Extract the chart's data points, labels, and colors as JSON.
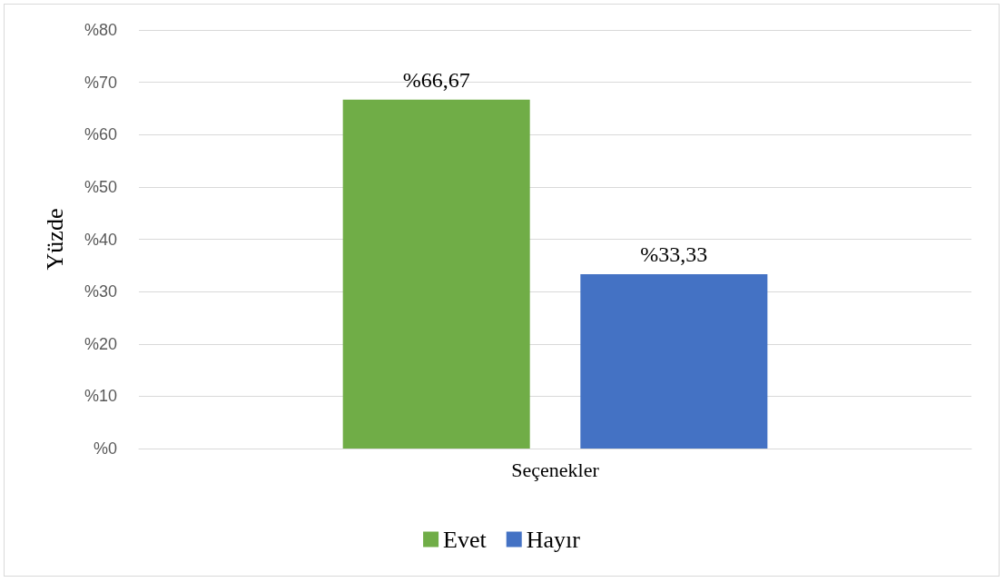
{
  "chart_data": {
    "type": "bar",
    "ylabel": "Yüzde",
    "categories": [
      "Seçenekler"
    ],
    "series": [
      {
        "name": "Evet",
        "color": "#70ad47",
        "values": [
          66.67
        ],
        "value_labels": [
          "%66,67"
        ]
      },
      {
        "name": "Hayır",
        "color": "#4472c4",
        "values": [
          33.33
        ],
        "value_labels": [
          "%33,33"
        ]
      }
    ],
    "ylim": [
      0,
      80
    ],
    "yticks": [
      {
        "value": 0,
        "label": "%0"
      },
      {
        "value": 10,
        "label": "%10"
      },
      {
        "value": 20,
        "label": "%20"
      },
      {
        "value": 30,
        "label": "%30"
      },
      {
        "value": 40,
        "label": "%40"
      },
      {
        "value": 50,
        "label": "%50"
      },
      {
        "value": 60,
        "label": "%60"
      },
      {
        "value": 70,
        "label": "%70"
      },
      {
        "value": 80,
        "label": "%80"
      }
    ],
    "grid": "y",
    "legend": "bottom"
  }
}
